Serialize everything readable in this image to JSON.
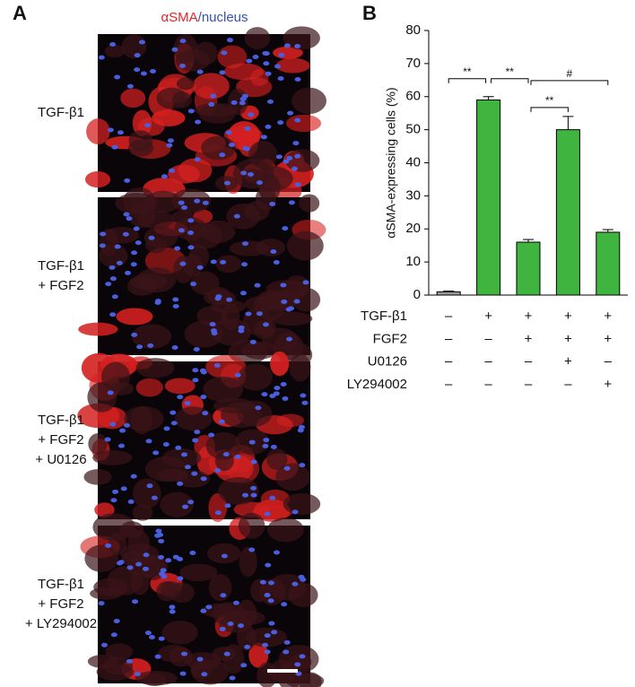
{
  "panel_a": {
    "label": "A",
    "title": [
      "αSMA",
      "/nucleus"
    ],
    "rows": [
      [
        "TGF-β1"
      ],
      [
        "TGF-β1",
        "+ FGF2"
      ],
      [
        "TGF-β1",
        "+ FGF2",
        "+ U0126"
      ],
      [
        "TGF-β1",
        "+ FGF2",
        "+ LY294002"
      ]
    ]
  },
  "chart_data": {
    "type": "bar",
    "label": "B",
    "ylabel": "αSMA-expressing cells (%)",
    "categories": [
      null,
      null,
      null,
      null,
      null
    ],
    "values": [
      1,
      59,
      16,
      50,
      19
    ],
    "errors": [
      0.2,
      1,
      0.8,
      4,
      0.8
    ],
    "colors": [
      "#9a9a9a",
      "#3fb53f",
      "#3fb53f",
      "#3fb53f",
      "#3fb53f"
    ],
    "ylim": [
      0,
      80
    ],
    "yticks": [
      0,
      10,
      20,
      30,
      40,
      50,
      60,
      70,
      80
    ],
    "annotations": [
      {
        "label": "**",
        "pair": [
          0,
          1
        ]
      },
      {
        "label": "**",
        "pair": [
          1,
          2
        ]
      },
      {
        "label": "**",
        "pair": [
          2,
          3
        ]
      },
      {
        "label": "#",
        "pair": [
          2,
          4
        ]
      }
    ],
    "conditions": [
      {
        "name": "TGF-β1",
        "marks": [
          "–",
          "+",
          "+",
          "+",
          "+"
        ]
      },
      {
        "name": "FGF2",
        "marks": [
          "–",
          "–",
          "+",
          "+",
          "+"
        ]
      },
      {
        "name": "U0126",
        "marks": [
          "–",
          "–",
          "–",
          "+",
          "–"
        ]
      },
      {
        "name": "LY294002",
        "marks": [
          "–",
          "–",
          "–",
          "–",
          "+"
        ]
      }
    ]
  }
}
